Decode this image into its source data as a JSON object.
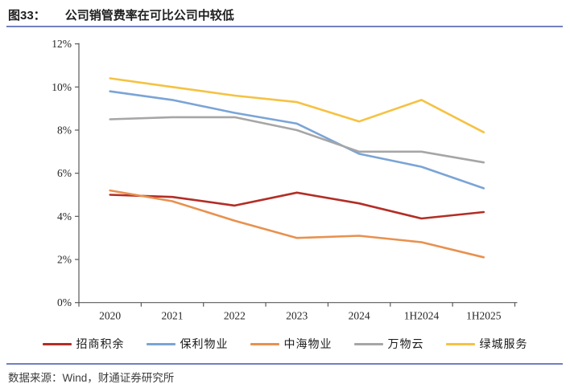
{
  "title": {
    "tag": "图33：",
    "text": "公司销管费率在可比公司中较低"
  },
  "source": {
    "label": "数据来源：Wind，财通证券研究所"
  },
  "colors": {
    "rule_blue": "#7280C0",
    "axis": "#595959"
  },
  "chart_data": {
    "type": "line",
    "title": "公司销管费率在可比公司中较低",
    "categories": [
      "2020",
      "2021",
      "2022",
      "2023",
      "2024",
      "1H2024",
      "1H2025"
    ],
    "series": [
      {
        "name": "招商积余",
        "color": "#B22E26",
        "values": [
          5.0,
          4.9,
          4.5,
          5.1,
          4.6,
          3.9,
          4.2
        ]
      },
      {
        "name": "保利物业",
        "color": "#7AA4D6",
        "values": [
          9.8,
          9.4,
          8.8,
          8.3,
          6.9,
          6.3,
          5.3
        ]
      },
      {
        "name": "中海物业",
        "color": "#E8914E",
        "values": [
          5.2,
          4.7,
          3.8,
          3.0,
          3.1,
          2.8,
          2.1
        ]
      },
      {
        "name": "万物云",
        "color": "#A6A6A6",
        "values": [
          8.5,
          8.6,
          8.6,
          8.0,
          7.0,
          7.0,
          6.5
        ]
      },
      {
        "name": "绿城服务",
        "color": "#F5C242",
        "values": [
          10.4,
          10.0,
          9.6,
          9.3,
          8.4,
          9.4,
          7.9
        ]
      }
    ],
    "xlabel": "",
    "ylabel": "",
    "ylim": [
      0,
      12
    ],
    "ytick_step": 2,
    "ytick_suffix": "%",
    "grid": false,
    "legend_position": "bottom"
  }
}
